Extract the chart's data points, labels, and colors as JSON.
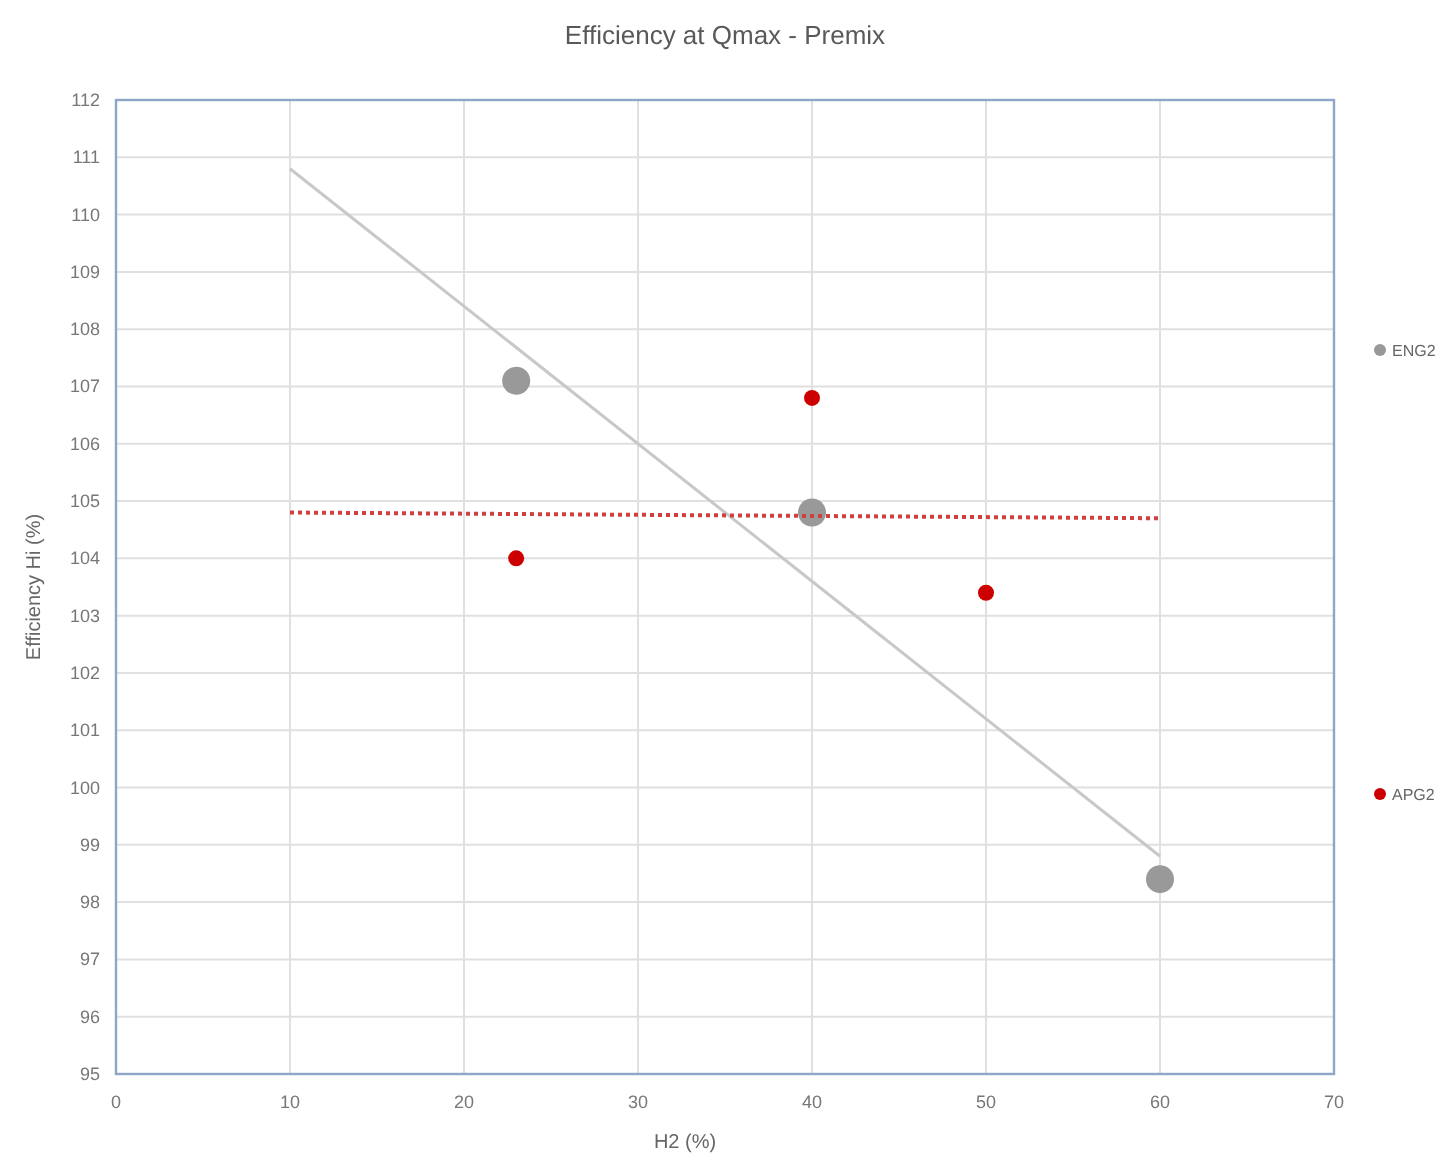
{
  "chart_data": {
    "type": "scatter",
    "title": "Efficiency at Qmax - Premix",
    "xlabel": "H2 (%)",
    "ylabel": "Efficiency Hi (%)",
    "xlim": [
      0,
      70
    ],
    "xticks": [
      0,
      10,
      20,
      30,
      40,
      50,
      60,
      70
    ],
    "ylim": [
      95,
      112
    ],
    "yticks": [
      95,
      96,
      97,
      98,
      99,
      100,
      101,
      102,
      103,
      104,
      105,
      106,
      107,
      108,
      109,
      110,
      111,
      112
    ],
    "grid": true,
    "legend": "right",
    "marker": "circle",
    "series": [
      {
        "name": "ENG2",
        "color": "#999999",
        "x": [
          23,
          40,
          60
        ],
        "values": [
          107.1,
          104.8,
          98.4
        ]
      },
      {
        "name": "APG2",
        "color": "#cc0000",
        "x": [
          23,
          40,
          50
        ],
        "values": [
          104,
          106.8,
          103.4
        ]
      },
      {
        "type": "line",
        "color": "#c8c8c8",
        "x": [
          10,
          60
        ],
        "values": [
          110.8,
          98.8
        ],
        "line_style": "solid",
        "marker": "none"
      },
      {
        "type": "line",
        "color": "#d04040",
        "x": [
          10,
          60
        ],
        "values": [
          104.8,
          104.7
        ],
        "line_style": "dotted",
        "marker": "none"
      }
    ]
  }
}
